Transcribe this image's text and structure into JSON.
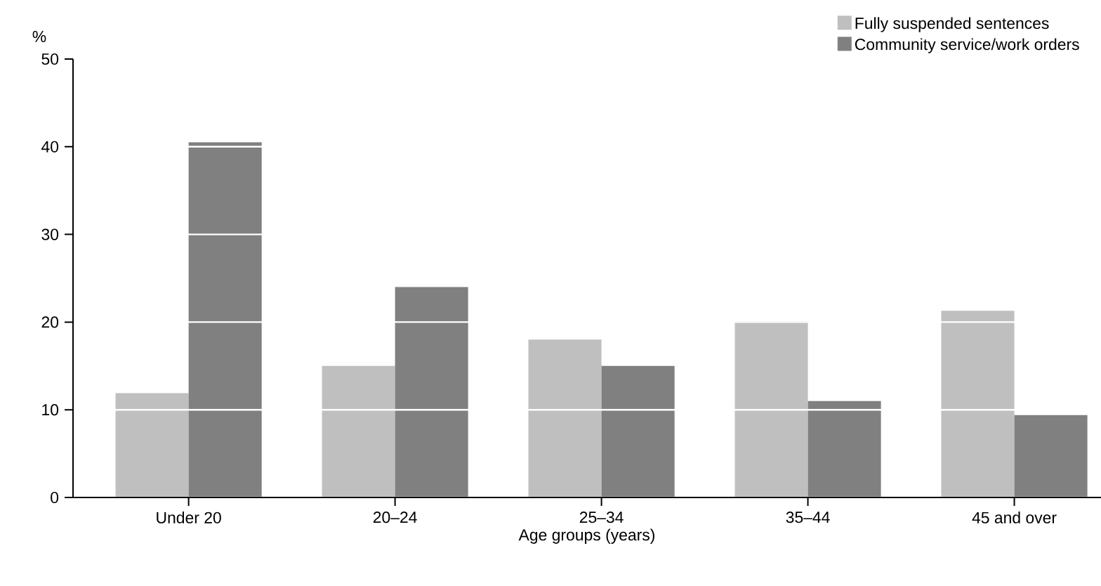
{
  "chart_data": {
    "type": "bar",
    "xlabel": "Age groups (years)",
    "ylabel": "%",
    "categories": [
      "Under 20",
      "20–24",
      "25–34",
      "35–44",
      "45 and over"
    ],
    "series": [
      {
        "name": "Fully suspended sentences",
        "color": "#bfbfbf",
        "values": [
          11.9,
          15.0,
          18.0,
          20.1,
          21.3
        ]
      },
      {
        "name": "Community service/work orders",
        "color": "#808080",
        "values": [
          40.5,
          24.0,
          15.0,
          11.0,
          9.4
        ]
      }
    ],
    "ylim": [
      0,
      50
    ],
    "yticks": [
      0,
      10,
      20,
      30,
      40,
      50
    ],
    "grid": "y",
    "legend": "top right"
  }
}
